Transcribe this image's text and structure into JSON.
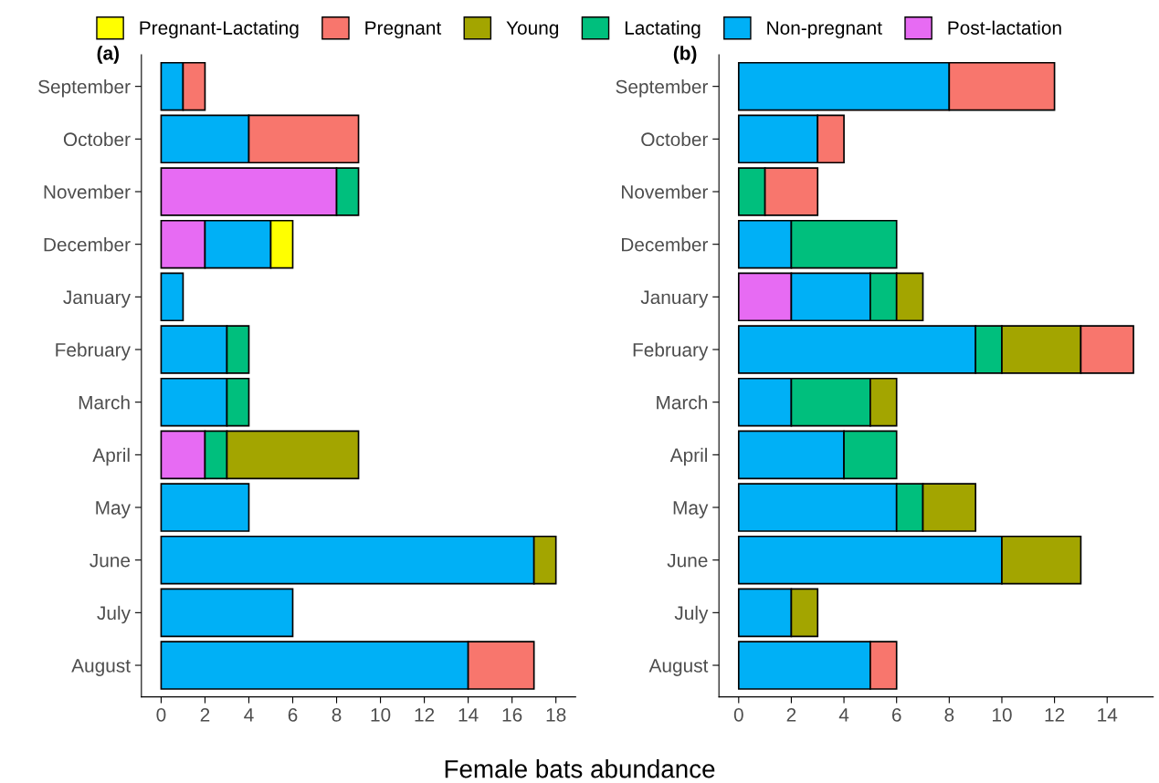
{
  "chart_data": [
    {
      "type": "bar",
      "title": "(a)",
      "xlabel": "Female bats abundance",
      "orientation": "horizontal",
      "stacked": true,
      "grid": false,
      "legend": "top",
      "categories": [
        "September",
        "October",
        "November",
        "December",
        "January",
        "February",
        "March",
        "April",
        "May",
        "June",
        "July",
        "August"
      ],
      "xlim": [
        -0.9,
        18.9
      ],
      "xticks": [
        0,
        2,
        4,
        6,
        8,
        10,
        12,
        14,
        16,
        18
      ],
      "series": [
        {
          "name": "Post-lactation",
          "color": "#e76bf3",
          "values": [
            null,
            null,
            8,
            2,
            null,
            null,
            null,
            2,
            null,
            null,
            null,
            null
          ]
        },
        {
          "name": "Non-pregnant",
          "color": "#00b0f6",
          "values": [
            1,
            4,
            null,
            3,
            1,
            3,
            3,
            null,
            4,
            17,
            6,
            14
          ]
        },
        {
          "name": "Lactating",
          "color": "#00bf7d",
          "values": [
            null,
            null,
            1,
            null,
            null,
            1,
            1,
            1,
            null,
            null,
            null,
            null
          ]
        },
        {
          "name": "Young",
          "color": "#a3a500",
          "values": [
            null,
            null,
            null,
            null,
            null,
            null,
            null,
            6,
            null,
            1,
            null,
            null
          ]
        },
        {
          "name": "Pregnant",
          "color": "#f8766d",
          "values": [
            1,
            5,
            null,
            null,
            null,
            null,
            null,
            null,
            null,
            null,
            null,
            3
          ]
        },
        {
          "name": "Pregnant-Lactating",
          "color": "#ffff00",
          "values": [
            null,
            null,
            null,
            1,
            null,
            null,
            null,
            null,
            null,
            null,
            null,
            null
          ]
        }
      ]
    },
    {
      "type": "bar",
      "title": "(b)",
      "orientation": "horizontal",
      "stacked": true,
      "grid": false,
      "categories": [
        "September",
        "October",
        "November",
        "December",
        "January",
        "February",
        "March",
        "April",
        "May",
        "June",
        "July",
        "August"
      ],
      "xlim": [
        -0.75,
        15.75
      ],
      "xticks": [
        0,
        2,
        4,
        6,
        8,
        10,
        12,
        14
      ],
      "series": [
        {
          "color": "#e76bf3",
          "values": [
            null,
            null,
            null,
            null,
            2,
            null,
            null,
            null,
            null,
            null,
            null,
            null
          ]
        },
        {
          "color": "#00b0f6",
          "values": [
            8,
            3,
            null,
            2,
            3,
            9,
            2,
            4,
            6,
            10,
            2,
            5
          ]
        },
        {
          "color": "#00bf7d",
          "values": [
            null,
            null,
            1,
            4,
            1,
            1,
            3,
            2,
            1,
            null,
            null,
            null
          ]
        },
        {
          "color": "#a3a500",
          "values": [
            null,
            null,
            null,
            null,
            1,
            3,
            1,
            null,
            2,
            3,
            1,
            null
          ]
        },
        {
          "color": "#f8766d",
          "values": [
            4,
            1,
            2,
            null,
            null,
            2,
            null,
            null,
            null,
            null,
            null,
            1
          ]
        }
      ]
    }
  ]
}
